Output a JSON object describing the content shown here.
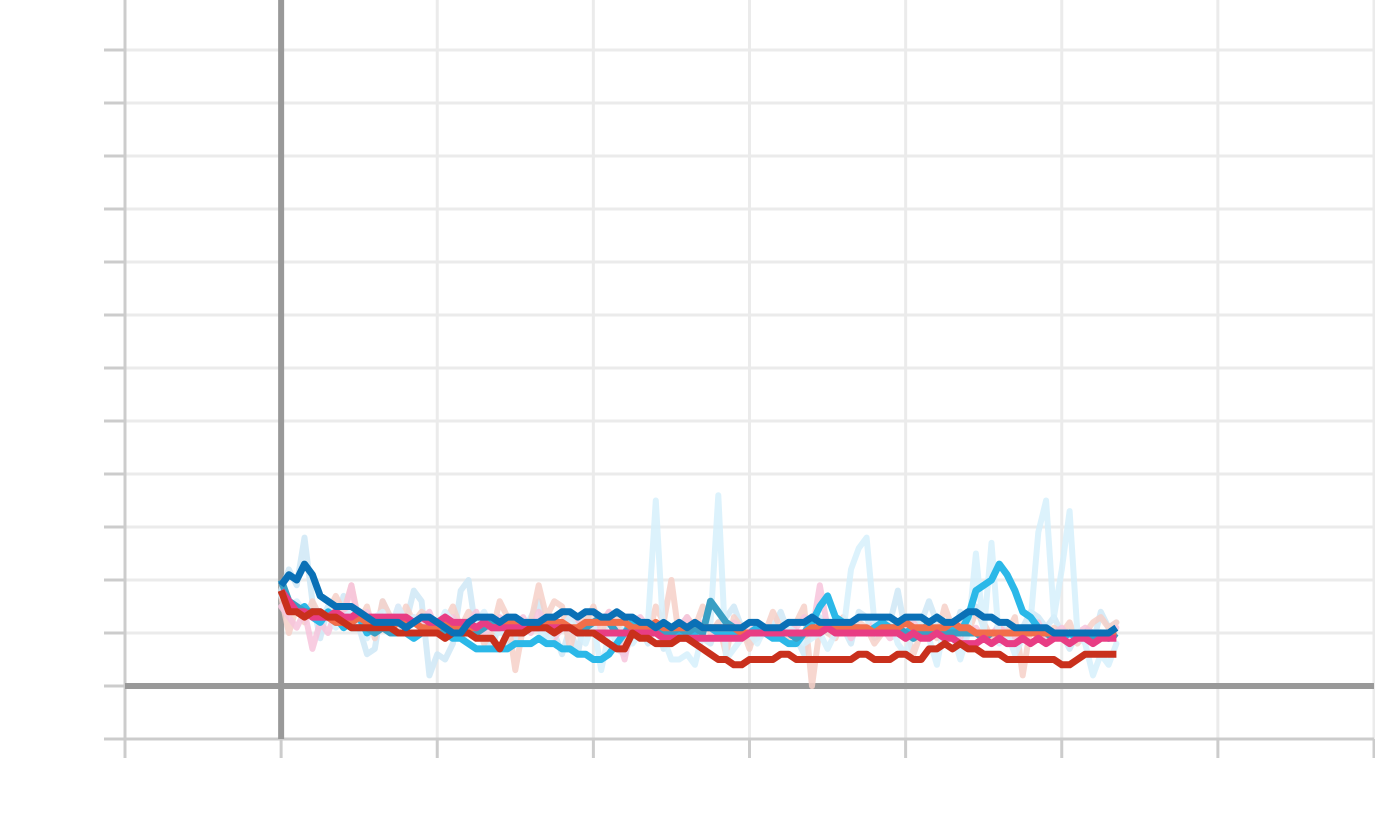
{
  "chart_data": {
    "type": "line",
    "title": "",
    "xlabel": "",
    "ylabel": "",
    "xlim": [
      -1,
      7
    ],
    "ylim": [
      -1,
      13
    ],
    "grid": true,
    "x_ticks": [
      -1,
      0,
      1,
      2,
      3,
      4,
      5,
      6,
      7
    ],
    "y_ticks": [
      -1,
      0,
      1,
      2,
      3,
      4,
      5,
      6,
      7,
      8,
      9,
      10,
      11,
      12,
      13
    ],
    "tick_labels_visible": false,
    "x_step": 0.05,
    "x_start": 0,
    "colors": {
      "zero_line": "#999999",
      "grid": "#ebebeb",
      "axis_frame": "#cccccc"
    },
    "raw_series": [
      {
        "color": "#cfe8f6",
        "values": [
          1.8,
          2.2,
          1.9,
          2.8,
          1.6,
          0.9,
          1.5,
          1.2,
          1.7,
          1.3,
          1.1,
          0.6,
          0.7,
          1.6,
          1.3,
          1.1,
          1.2,
          1.8,
          1.6,
          0.2,
          0.6,
          0.5,
          0.8,
          1.8,
          2.0,
          1.0,
          0.9,
          0.7,
          1.2,
          0.8,
          0.9,
          1.0,
          1.3,
          1.6,
          0.9,
          1.0,
          0.6,
          1.1,
          0.6,
          1.4,
          1.1,
          0.9,
          1.3,
          0.7,
          0.6,
          1.0,
          1.1,
          0.8,
          1.2,
          0.7,
          1.0,
          1.1,
          1.3,
          1.0,
          0.9,
          0.8,
          1.2,
          1.3,
          1.5,
          1.1,
          0.8,
          0.9,
          1.0,
          1.1,
          1.4,
          1.0,
          0.9,
          0.6,
          1.2,
          1.3,
          1.0,
          1.2,
          1.1,
          0.8,
          1.4,
          1.3,
          0.9,
          1.0,
          1.2,
          1.8,
          1.0,
          1.3,
          1.2,
          1.6,
          1.2,
          1.0,
          0.9,
          1.4,
          1.3,
          1.5,
          1.1,
          0.9,
          1.2,
          1.0,
          0.8,
          1.1,
          1.4,
          1.3,
          1.1,
          1.3,
          1.0,
          0.7,
          1.0,
          0.9,
          0.8,
          1.4,
          1.1,
          1.2
        ]
      },
      {
        "color": "#f6d0c8",
        "values": [
          1.7,
          1.0,
          1.5,
          1.2,
          1.6,
          1.3,
          1.4,
          1.7,
          1.4,
          1.9,
          1.2,
          1.5,
          0.9,
          1.6,
          1.3,
          1.1,
          1.5,
          1.2,
          1.4,
          1.3,
          1.0,
          1.2,
          1.5,
          1.1,
          1.4,
          1.2,
          0.8,
          1.0,
          1.6,
          1.3,
          0.3,
          1.1,
          1.2,
          1.9,
          1.3,
          1.6,
          1.5,
          0.7,
          1.3,
          1.2,
          1.5,
          1.0,
          1.4,
          1.3,
          0.8,
          1.2,
          1.1,
          0.9,
          1.5,
          1.2,
          2.0,
          0.9,
          1.3,
          1.1,
          1.5,
          1.0,
          1.2,
          0.6,
          1.3,
          1.1,
          0.7,
          1.2,
          1.0,
          1.4,
          1.1,
          0.9,
          1.2,
          1.5,
          0.0,
          1.1,
          1.0,
          0.9,
          1.3,
          1.0,
          1.2,
          1.1,
          0.8,
          1.0,
          1.3,
          1.2,
          1.1,
          0.6,
          1.0,
          1.2,
          0.9,
          1.5,
          1.1,
          1.3,
          1.0,
          1.4,
          1.2,
          0.9,
          1.1,
          1.0,
          1.3,
          0.2,
          1.1,
          1.0,
          0.9,
          1.1,
          1.0,
          1.2,
          0.8,
          1.0,
          1.2,
          1.3,
          1.1,
          1.2
        ]
      },
      {
        "color": "#f7c4dc",
        "values": [
          1.5,
          1.3,
          1.1,
          1.4,
          0.7,
          1.2,
          1.0,
          1.4,
          1.3,
          1.9,
          1.1,
          1.4,
          1.2,
          1.3,
          1.0,
          1.5,
          1.1,
          1.3,
          1.2,
          1.4,
          1.0,
          1.2,
          1.3,
          1.1,
          1.2,
          1.4,
          1.0,
          1.1,
          1.3,
          1.2,
          1.1,
          1.3,
          1.0,
          1.4,
          1.2,
          0.9,
          1.1,
          1.3,
          1.2,
          1.0,
          1.1,
          1.2,
          1.4,
          1.0,
          0.5,
          1.2,
          1.3,
          1.1,
          1.0,
          1.2,
          0.9,
          1.1,
          1.3,
          1.0,
          1.2,
          1.1,
          0.9,
          1.0,
          1.2,
          1.1,
          1.0,
          1.2,
          1.1,
          0.9,
          1.0,
          1.2,
          1.1,
          1.3,
          1.0,
          1.9,
          1.1,
          1.0,
          1.2,
          0.9,
          1.1,
          1.0,
          1.2,
          1.1,
          0.9,
          1.0,
          1.1,
          1.2,
          1.0,
          0.9,
          1.1,
          1.0,
          1.2,
          0.8,
          1.0,
          1.1,
          0.9,
          1.0,
          1.1,
          1.0,
          0.9,
          1.1,
          1.0,
          1.2,
          0.9,
          1.0,
          1.1,
          0.9,
          1.0,
          1.1,
          1.0,
          0.9,
          1.0,
          1.1
        ]
      },
      {
        "color": "#d6f0fb",
        "values": [
          1.7,
          1.5,
          1.6,
          1.4,
          1.3,
          1.2,
          1.5,
          1.1,
          1.3,
          1.4,
          1.2,
          0.9,
          1.3,
          1.4,
          1.1,
          1.5,
          1.2,
          1.3,
          1.0,
          1.2,
          1.1,
          1.4,
          1.2,
          0.9,
          1.0,
          1.2,
          1.4,
          1.1,
          1.0,
          1.2,
          1.3,
          1.0,
          1.2,
          1.1,
          0.8,
          1.0,
          1.1,
          1.3,
          1.0,
          0.8,
          1.2,
          0.3,
          1.0,
          0.9,
          1.1,
          0.8,
          1.0,
          1.2,
          3.5,
          0.9,
          0.5,
          0.5,
          0.6,
          0.4,
          1.0,
          1.2,
          3.6,
          0.5,
          0.7,
          0.9,
          1.0,
          0.8,
          1.1,
          1.0,
          0.9,
          1.1,
          1.0,
          0.8,
          0.9,
          1.0,
          0.7,
          1.0,
          1.0,
          2.2,
          2.6,
          2.8,
          1.2,
          1.0,
          1.3,
          0.8,
          0.6,
          1.0,
          1.1,
          0.9,
          0.4,
          1.2,
          1.0,
          0.5,
          1.0,
          2.5,
          1.0,
          2.7,
          0.8,
          1.0,
          0.6,
          0.9,
          1.2,
          2.9,
          3.5,
          1.3,
          2.2,
          3.3,
          1.0,
          0.8,
          0.2,
          0.6,
          0.4,
          0.8
        ]
      }
    ],
    "series": [
      {
        "color": "#2bb8e8",
        "values": [
          1.8,
          1.6,
          1.4,
          1.5,
          1.3,
          1.2,
          1.4,
          1.3,
          1.1,
          1.2,
          1.3,
          1.0,
          1.1,
          1.2,
          1.1,
          1.0,
          1.0,
          0.9,
          1.0,
          1.1,
          1.0,
          1.0,
          0.9,
          0.9,
          0.8,
          0.7,
          0.7,
          0.7,
          0.7,
          0.7,
          0.8,
          0.8,
          0.8,
          0.9,
          0.8,
          0.8,
          0.7,
          0.7,
          0.6,
          0.6,
          0.5,
          0.5,
          0.6,
          0.8,
          1.0,
          1.2,
          1.1,
          1.0,
          1.1,
          1.0,
          1.0,
          1.0,
          1.0,
          1.0,
          1.1,
          1.1,
          1.0,
          1.0,
          1.0,
          1.0,
          1.0,
          1.1,
          1.0,
          0.9,
          0.9,
          0.8,
          0.8,
          1.0,
          1.2,
          1.5,
          1.7,
          1.3,
          1.2,
          1.1,
          1.1,
          1.0,
          1.1,
          1.2,
          1.1,
          1.0,
          1.0,
          1.1,
          1.0,
          1.2,
          1.3,
          1.2,
          1.1,
          1.0,
          1.3,
          1.8,
          1.9,
          2.0,
          2.3,
          2.1,
          1.8,
          1.4,
          1.3,
          1.1,
          1.0,
          1.0,
          0.9,
          1.0,
          0.9,
          1.0,
          0.9,
          1.0,
          0.9,
          1.0
        ]
      },
      {
        "color": "#3a9fc4",
        "values": [
          2.0,
          1.6,
          1.5,
          1.4,
          1.4,
          1.4,
          1.3,
          1.2,
          1.2,
          1.1,
          1.1,
          1.1,
          1.0,
          1.1,
          1.0,
          1.0,
          1.0,
          1.0,
          1.0,
          1.0,
          1.1,
          1.0,
          1.0,
          1.1,
          1.1,
          1.0,
          1.1,
          1.2,
          1.2,
          1.1,
          1.1,
          1.0,
          1.1,
          1.1,
          1.2,
          1.2,
          1.1,
          1.1,
          1.0,
          1.1,
          1.2,
          1.3,
          1.2,
          1.0,
          1.0,
          1.1,
          1.0,
          1.0,
          1.1,
          1.0,
          1.0,
          1.1,
          1.0,
          1.1,
          1.0,
          1.6,
          1.4,
          1.2,
          1.1,
          1.0,
          1.0,
          1.0,
          1.0,
          1.0,
          1.0,
          1.0,
          0.9,
          1.0,
          1.0,
          1.0,
          1.1,
          1.1,
          1.1,
          1.0,
          1.0,
          1.0,
          1.0,
          1.1,
          1.1,
          1.1,
          1.0,
          0.9,
          1.0,
          1.0,
          1.0,
          1.0,
          1.0,
          1.0,
          1.0,
          1.0,
          0.9,
          1.0,
          1.0,
          1.0,
          1.0,
          1.0,
          1.0,
          1.0,
          1.0,
          0.9,
          1.0,
          1.0,
          1.0,
          1.0,
          0.9,
          1.0,
          1.0,
          0.9
        ]
      },
      {
        "color": "#f26e4a",
        "values": [
          1.8,
          1.5,
          1.4,
          1.3,
          1.4,
          1.3,
          1.3,
          1.2,
          1.2,
          1.2,
          1.3,
          1.2,
          1.2,
          1.2,
          1.1,
          1.2,
          1.2,
          1.2,
          1.1,
          1.1,
          1.1,
          1.2,
          1.1,
          1.1,
          1.1,
          1.1,
          1.2,
          1.1,
          1.1,
          1.2,
          1.2,
          1.2,
          1.1,
          1.1,
          1.2,
          1.2,
          1.2,
          1.1,
          1.1,
          1.2,
          1.2,
          1.2,
          1.2,
          1.2,
          1.2,
          1.1,
          1.1,
          1.1,
          1.2,
          1.1,
          1.1,
          1.1,
          1.1,
          1.2,
          1.1,
          1.1,
          1.1,
          1.1,
          1.1,
          1.0,
          1.0,
          1.0,
          1.0,
          1.0,
          1.0,
          1.0,
          1.0,
          1.0,
          1.1,
          1.1,
          1.1,
          1.1,
          1.1,
          1.1,
          1.1,
          1.1,
          1.0,
          1.1,
          1.1,
          1.1,
          1.2,
          1.1,
          1.1,
          1.1,
          1.1,
          1.1,
          1.2,
          1.1,
          1.1,
          1.0,
          1.0,
          1.0,
          1.0,
          1.0,
          1.0,
          1.0,
          1.0,
          1.0,
          1.0,
          1.0,
          1.0,
          1.0,
          1.0,
          1.0,
          1.0,
          1.0,
          1.0,
          1.0
        ]
      },
      {
        "color": "#e83d84",
        "values": [
          1.8,
          1.6,
          1.4,
          1.4,
          1.3,
          1.3,
          1.3,
          1.4,
          1.3,
          1.3,
          1.4,
          1.3,
          1.3,
          1.3,
          1.3,
          1.3,
          1.3,
          1.2,
          1.3,
          1.2,
          1.2,
          1.3,
          1.2,
          1.2,
          1.2,
          1.1,
          1.2,
          1.1,
          1.1,
          1.1,
          1.1,
          1.1,
          1.1,
          1.1,
          1.1,
          1.1,
          1.1,
          1.1,
          1.0,
          1.0,
          1.0,
          1.0,
          1.0,
          1.0,
          1.0,
          1.0,
          1.0,
          1.0,
          1.0,
          0.9,
          0.9,
          0.9,
          0.9,
          0.9,
          0.9,
          0.9,
          0.9,
          0.9,
          0.9,
          0.9,
          1.0,
          1.0,
          1.0,
          1.0,
          1.0,
          1.0,
          1.0,
          1.0,
          1.0,
          1.0,
          1.1,
          1.0,
          1.0,
          1.0,
          1.0,
          1.0,
          1.0,
          1.0,
          1.0,
          1.0,
          0.9,
          1.0,
          0.9,
          0.9,
          1.0,
          0.9,
          0.9,
          0.8,
          0.8,
          0.8,
          0.9,
          0.8,
          0.9,
          0.8,
          0.8,
          0.9,
          0.8,
          0.9,
          0.8,
          0.9,
          0.9,
          0.8,
          0.9,
          0.9,
          0.8,
          0.9,
          0.9,
          0.9
        ]
      },
      {
        "color": "#c9301c",
        "values": [
          1.8,
          1.4,
          1.4,
          1.3,
          1.4,
          1.4,
          1.3,
          1.3,
          1.2,
          1.1,
          1.1,
          1.1,
          1.1,
          1.1,
          1.1,
          1.0,
          1.0,
          1.0,
          1.0,
          1.0,
          1.0,
          0.9,
          1.0,
          1.0,
          1.0,
          0.9,
          0.9,
          0.9,
          0.7,
          1.0,
          1.0,
          1.0,
          1.1,
          1.1,
          1.1,
          1.0,
          1.1,
          1.1,
          1.0,
          1.0,
          1.0,
          0.9,
          0.8,
          0.7,
          0.7,
          1.0,
          0.9,
          0.9,
          0.8,
          0.8,
          0.8,
          0.9,
          0.9,
          0.8,
          0.7,
          0.6,
          0.5,
          0.5,
          0.4,
          0.4,
          0.5,
          0.5,
          0.5,
          0.5,
          0.6,
          0.6,
          0.5,
          0.5,
          0.5,
          0.5,
          0.5,
          0.5,
          0.5,
          0.5,
          0.6,
          0.6,
          0.5,
          0.5,
          0.5,
          0.6,
          0.6,
          0.5,
          0.5,
          0.7,
          0.7,
          0.8,
          0.7,
          0.8,
          0.7,
          0.7,
          0.6,
          0.6,
          0.6,
          0.5,
          0.5,
          0.5,
          0.5,
          0.5,
          0.5,
          0.5,
          0.4,
          0.4,
          0.5,
          0.6,
          0.6,
          0.6,
          0.6,
          0.6
        ]
      },
      {
        "color": "#0a70b6",
        "values": [
          1.9,
          2.1,
          2.0,
          2.3,
          2.1,
          1.7,
          1.6,
          1.5,
          1.5,
          1.5,
          1.4,
          1.3,
          1.2,
          1.2,
          1.2,
          1.2,
          1.1,
          1.2,
          1.3,
          1.3,
          1.2,
          1.1,
          1.0,
          1.0,
          1.2,
          1.3,
          1.3,
          1.3,
          1.2,
          1.3,
          1.3,
          1.2,
          1.2,
          1.2,
          1.3,
          1.3,
          1.4,
          1.4,
          1.3,
          1.4,
          1.4,
          1.3,
          1.3,
          1.4,
          1.3,
          1.3,
          1.2,
          1.2,
          1.1,
          1.2,
          1.1,
          1.2,
          1.1,
          1.2,
          1.1,
          1.1,
          1.1,
          1.1,
          1.1,
          1.1,
          1.2,
          1.2,
          1.1,
          1.1,
          1.1,
          1.2,
          1.2,
          1.2,
          1.3,
          1.2,
          1.2,
          1.2,
          1.2,
          1.2,
          1.3,
          1.3,
          1.3,
          1.3,
          1.3,
          1.2,
          1.3,
          1.3,
          1.3,
          1.2,
          1.3,
          1.2,
          1.2,
          1.3,
          1.4,
          1.4,
          1.3,
          1.3,
          1.2,
          1.2,
          1.1,
          1.1,
          1.1,
          1.1,
          1.1,
          1.0,
          1.0,
          1.0,
          1.0,
          1.0,
          1.0,
          1.0,
          1.0,
          1.1
        ]
      }
    ]
  }
}
